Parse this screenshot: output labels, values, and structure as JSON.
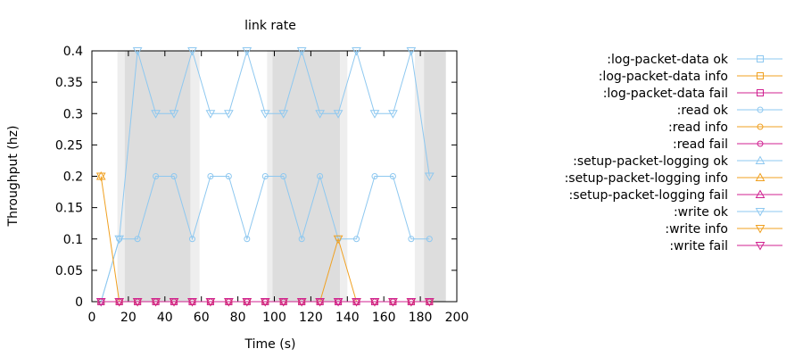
{
  "chart_data": {
    "type": "line",
    "title": "link rate",
    "xlabel": "Time (s)",
    "ylabel": "Throughput (hz)",
    "xlim": [
      0,
      200
    ],
    "ylim": [
      0,
      0.4
    ],
    "x_ticks": [
      0,
      20,
      40,
      60,
      80,
      100,
      120,
      140,
      160,
      180,
      200
    ],
    "y_ticks": [
      0,
      0.05,
      0.1,
      0.15,
      0.2,
      0.25,
      0.3,
      0.35,
      0.4
    ],
    "x_tick_labels": [
      "0",
      "20",
      "40",
      "60",
      "80",
      "100",
      "120",
      "140",
      "160",
      "180",
      "200"
    ],
    "y_tick_labels": [
      "0",
      "0.05",
      "0.1",
      "0.15",
      "0.2",
      "0.25",
      "0.3",
      "0.35",
      "0.4"
    ],
    "grid": false,
    "legend_position": "right",
    "shaded_regions": [
      {
        "x0": 14,
        "x1": 18,
        "shade": "light"
      },
      {
        "x0": 18,
        "x1": 54,
        "shade": "dark"
      },
      {
        "x0": 54,
        "x1": 59,
        "shade": "light"
      },
      {
        "x0": 96,
        "x1": 99,
        "shade": "light"
      },
      {
        "x0": 99,
        "x1": 136,
        "shade": "dark"
      },
      {
        "x0": 136,
        "x1": 140,
        "shade": "light"
      },
      {
        "x0": 177,
        "x1": 182,
        "shade": "light"
      },
      {
        "x0": 182,
        "x1": 194,
        "shade": "dark"
      }
    ],
    "series": [
      {
        "name": ":log-packet-data ok",
        "color": "#8ec8f0",
        "marker": "square",
        "x": [
          5,
          15,
          25,
          35,
          45,
          55,
          65,
          75,
          85,
          95,
          105,
          115,
          125,
          135,
          145,
          155,
          165,
          175,
          185
        ],
        "y": [
          0,
          0,
          0,
          0,
          0,
          0,
          0,
          0,
          0,
          0,
          0,
          0,
          0,
          0,
          0,
          0,
          0,
          0,
          0
        ]
      },
      {
        "name": ":log-packet-data info",
        "color": "#f0a020",
        "marker": "square",
        "x": [
          5,
          15,
          25,
          35,
          45,
          55,
          65,
          75,
          85,
          95,
          105,
          115,
          125,
          135,
          145,
          155,
          165,
          175,
          185
        ],
        "y": [
          0,
          0,
          0,
          0,
          0,
          0,
          0,
          0,
          0,
          0,
          0,
          0,
          0,
          0,
          0,
          0,
          0,
          0,
          0
        ]
      },
      {
        "name": ":log-packet-data fail",
        "color": "#d02090",
        "marker": "square",
        "x": [
          5,
          15,
          25,
          35,
          45,
          55,
          65,
          75,
          85,
          95,
          105,
          115,
          125,
          135,
          145,
          155,
          165,
          175,
          185
        ],
        "y": [
          0,
          0,
          0,
          0,
          0,
          0,
          0,
          0,
          0,
          0,
          0,
          0,
          0,
          0,
          0,
          0,
          0,
          0,
          0
        ]
      },
      {
        "name": ":read ok",
        "color": "#8ec8f0",
        "marker": "circle",
        "x": [
          5,
          15,
          25,
          35,
          45,
          55,
          65,
          75,
          85,
          95,
          105,
          115,
          125,
          135,
          145,
          155,
          165,
          175,
          185
        ],
        "y": [
          0,
          0.1,
          0.1,
          0.2,
          0.2,
          0.1,
          0.2,
          0.2,
          0.1,
          0.2,
          0.2,
          0.1,
          0.2,
          0.1,
          0.1,
          0.2,
          0.2,
          0.1,
          0.1
        ]
      },
      {
        "name": ":read info",
        "color": "#f0a020",
        "marker": "circle",
        "x": [
          5,
          15,
          25,
          35,
          45,
          55,
          65,
          75,
          85,
          95,
          105,
          115,
          125,
          135,
          145,
          155,
          165,
          175,
          185
        ],
        "y": [
          0,
          0,
          0,
          0,
          0,
          0,
          0,
          0,
          0,
          0,
          0,
          0,
          0,
          0,
          0,
          0,
          0,
          0,
          0
        ]
      },
      {
        "name": ":read fail",
        "color": "#d02090",
        "marker": "circle",
        "x": [
          5,
          15,
          25,
          35,
          45,
          55,
          65,
          75,
          85,
          95,
          105,
          115,
          125,
          135,
          145,
          155,
          165,
          175,
          185
        ],
        "y": [
          0,
          0,
          0,
          0,
          0,
          0,
          0,
          0,
          0,
          0,
          0,
          0,
          0,
          0,
          0,
          0,
          0,
          0,
          0
        ]
      },
      {
        "name": ":setup-packet-logging ok",
        "color": "#8ec8f0",
        "marker": "triangle-up",
        "x": [],
        "y": []
      },
      {
        "name": ":setup-packet-logging info",
        "color": "#f0a020",
        "marker": "triangle-up",
        "x": [
          5
        ],
        "y": [
          0.2
        ]
      },
      {
        "name": ":setup-packet-logging fail",
        "color": "#d02090",
        "marker": "triangle-up",
        "x": [],
        "y": []
      },
      {
        "name": ":write ok",
        "color": "#8ec8f0",
        "marker": "triangle-down",
        "x": [
          5,
          15,
          25,
          35,
          45,
          55,
          65,
          75,
          85,
          95,
          105,
          115,
          125,
          135,
          145,
          155,
          165,
          175,
          185
        ],
        "y": [
          0,
          0.1,
          0.4,
          0.3,
          0.3,
          0.4,
          0.3,
          0.3,
          0.4,
          0.3,
          0.3,
          0.4,
          0.3,
          0.3,
          0.4,
          0.3,
          0.3,
          0.4,
          0.2
        ]
      },
      {
        "name": ":write info",
        "color": "#f0a020",
        "marker": "triangle-down",
        "x": [
          5,
          15,
          25,
          35,
          45,
          55,
          65,
          75,
          85,
          95,
          105,
          115,
          125,
          135,
          145,
          155,
          165,
          175,
          185
        ],
        "y": [
          0.2,
          0,
          0,
          0,
          0,
          0,
          0,
          0,
          0,
          0,
          0,
          0,
          0,
          0.1,
          0,
          0,
          0,
          0,
          0
        ]
      },
      {
        "name": ":write fail",
        "color": "#d02090",
        "marker": "triangle-down",
        "x": [
          5,
          15,
          25,
          35,
          45,
          55,
          65,
          75,
          85,
          95,
          105,
          115,
          125,
          135,
          145,
          155,
          165,
          175,
          185
        ],
        "y": [
          0,
          0,
          0,
          0,
          0,
          0,
          0,
          0,
          0,
          0,
          0,
          0,
          0,
          0,
          0,
          0,
          0,
          0,
          0
        ]
      }
    ]
  }
}
